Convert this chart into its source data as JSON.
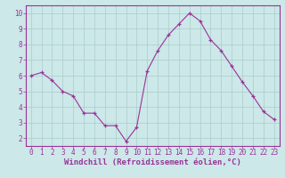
{
  "x": [
    0,
    1,
    2,
    3,
    4,
    5,
    6,
    7,
    8,
    9,
    10,
    11,
    12,
    13,
    14,
    15,
    16,
    17,
    18,
    19,
    20,
    21,
    22,
    23
  ],
  "y": [
    6.0,
    6.2,
    5.7,
    5.0,
    4.7,
    3.6,
    3.6,
    2.8,
    2.8,
    1.8,
    2.7,
    6.3,
    7.6,
    8.6,
    9.3,
    10.0,
    9.5,
    8.3,
    7.6,
    6.6,
    5.6,
    4.7,
    3.7,
    3.2
  ],
  "line_color": "#993399",
  "marker_color": "#993399",
  "bg_color": "#cce8e8",
  "grid_color": "#aacccc",
  "xlabel": "Windchill (Refroidissement éolien,°C)",
  "xlim": [
    -0.5,
    23.5
  ],
  "ylim": [
    1.5,
    10.5
  ],
  "yticks": [
    2,
    3,
    4,
    5,
    6,
    7,
    8,
    9,
    10
  ],
  "xticks": [
    0,
    1,
    2,
    3,
    4,
    5,
    6,
    7,
    8,
    9,
    10,
    11,
    12,
    13,
    14,
    15,
    16,
    17,
    18,
    19,
    20,
    21,
    22,
    23
  ],
  "tick_color": "#993399",
  "label_color": "#993399",
  "label_fontsize": 6.5,
  "tick_fontsize": 5.5,
  "spine_color": "#993399"
}
